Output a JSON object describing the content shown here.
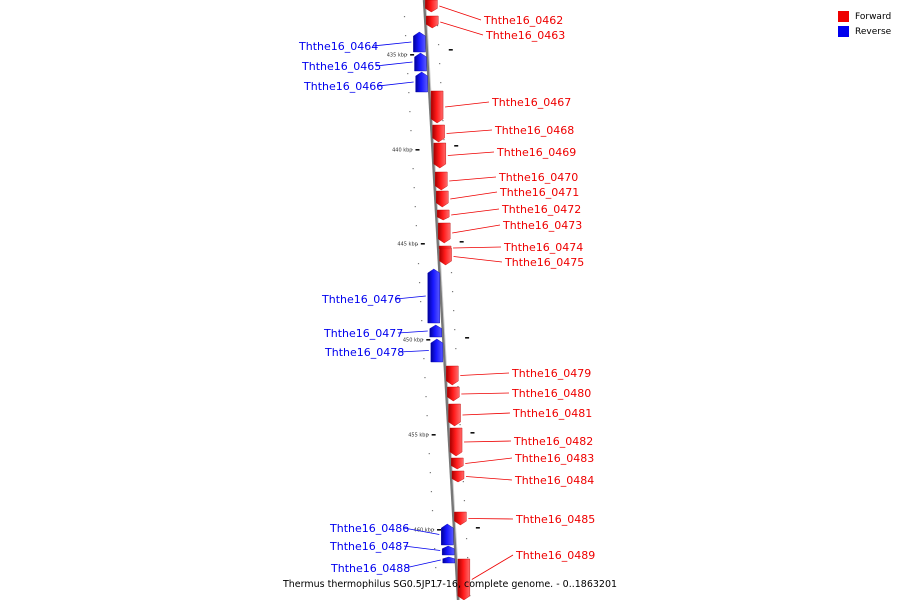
{
  "legend": [
    {
      "label": "Forward",
      "color": "#ee0000"
    },
    {
      "label": "Reverse",
      "color": "#0000ee"
    }
  ],
  "colors": {
    "forward": "#ee0000",
    "reverse": "#0000ee",
    "backbone": "#777777"
  },
  "scale_labels": [
    "435 kbp",
    "440 kbp",
    "445 kbp",
    "450 kbp",
    "455 kbp",
    "460 kbp"
  ],
  "genes": [
    {
      "name": "Ththe16_0462",
      "strand": "forward"
    },
    {
      "name": "Ththe16_0463",
      "strand": "forward"
    },
    {
      "name": "Ththe16_0464",
      "strand": "reverse"
    },
    {
      "name": "Ththe16_0465",
      "strand": "reverse"
    },
    {
      "name": "Ththe16_0466",
      "strand": "reverse"
    },
    {
      "name": "Ththe16_0467",
      "strand": "forward"
    },
    {
      "name": "Ththe16_0468",
      "strand": "forward"
    },
    {
      "name": "Ththe16_0469",
      "strand": "forward"
    },
    {
      "name": "Ththe16_0470",
      "strand": "forward"
    },
    {
      "name": "Ththe16_0471",
      "strand": "forward"
    },
    {
      "name": "Ththe16_0472",
      "strand": "forward"
    },
    {
      "name": "Ththe16_0473",
      "strand": "forward"
    },
    {
      "name": "Ththe16_0474",
      "strand": "forward"
    },
    {
      "name": "Ththe16_0475",
      "strand": "forward"
    },
    {
      "name": "Ththe16_0476",
      "strand": "reverse"
    },
    {
      "name": "Ththe16_0477",
      "strand": "reverse"
    },
    {
      "name": "Ththe16_0478",
      "strand": "reverse"
    },
    {
      "name": "Ththe16_0479",
      "strand": "forward"
    },
    {
      "name": "Ththe16_0480",
      "strand": "forward"
    },
    {
      "name": "Ththe16_0481",
      "strand": "forward"
    },
    {
      "name": "Ththe16_0482",
      "strand": "forward"
    },
    {
      "name": "Ththe16_0483",
      "strand": "forward"
    },
    {
      "name": "Ththe16_0484",
      "strand": "forward"
    },
    {
      "name": "Ththe16_0485",
      "strand": "forward"
    },
    {
      "name": "Ththe16_0486",
      "strand": "reverse"
    },
    {
      "name": "Ththe16_0487",
      "strand": "reverse"
    },
    {
      "name": "Ththe16_0488",
      "strand": "reverse"
    },
    {
      "name": "Ththe16_0489",
      "strand": "forward"
    }
  ],
  "footer": "Thermus thermophilus SG0.5JP17-16, complete genome. - 0..1863201"
}
